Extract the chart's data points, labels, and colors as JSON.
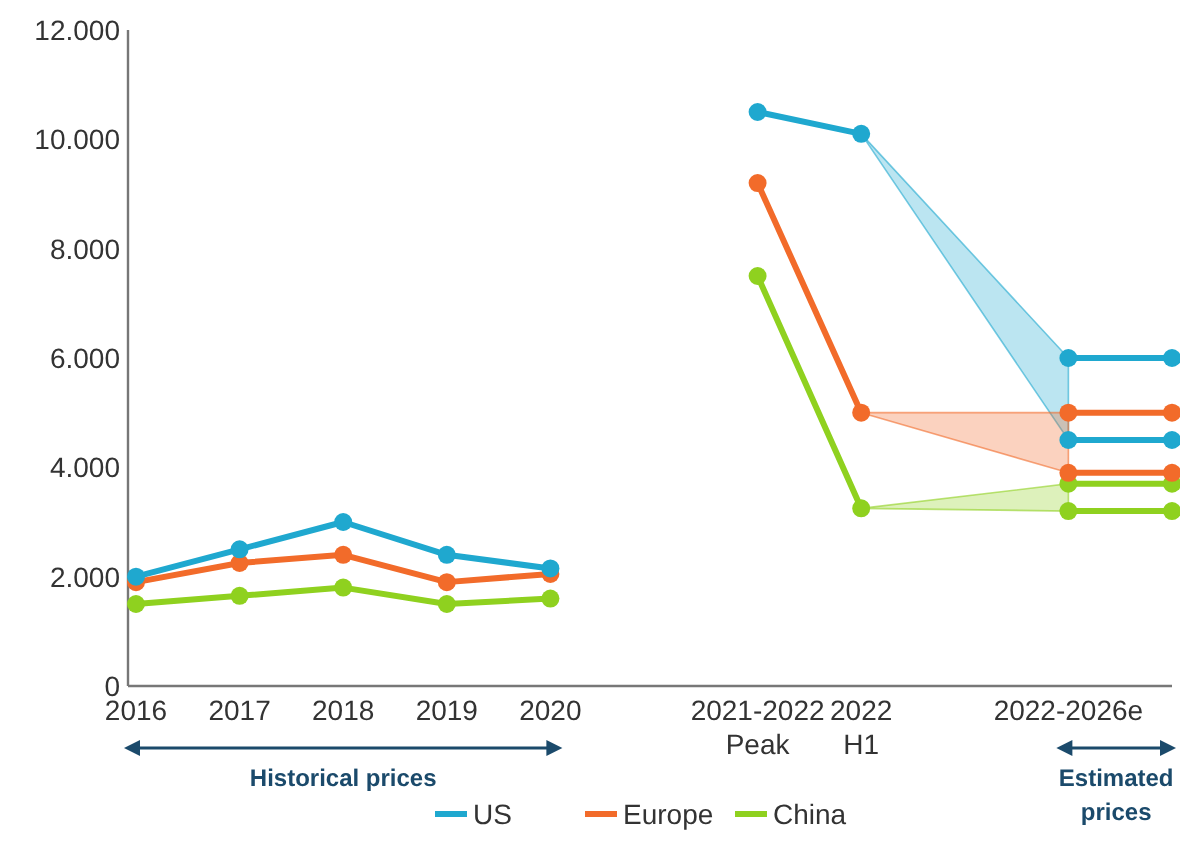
{
  "chart_data": {
    "type": "line",
    "categories": [
      "2016",
      "2017",
      "2018",
      "2019",
      "2020",
      null,
      "2021-2022 Peak",
      "2022 H1",
      null,
      "2022-2026e",
      null
    ],
    "series": [
      {
        "name": "US",
        "color": "#1fa8cf",
        "values": [
          2000,
          2500,
          3000,
          2400,
          2150,
          null,
          10500,
          10100,
          null,
          null,
          null
        ],
        "lower": [
          null,
          null,
          null,
          null,
          null,
          null,
          null,
          10100,
          null,
          4500,
          null
        ],
        "upper": [
          null,
          null,
          null,
          null,
          null,
          null,
          null,
          10100,
          null,
          6000,
          null
        ]
      },
      {
        "name": "Europe",
        "color": "#f26b2a",
        "values": [
          1900,
          2250,
          2400,
          1900,
          2050,
          null,
          9200,
          5000,
          null,
          null,
          null
        ],
        "lower": [
          null,
          null,
          null,
          null,
          null,
          null,
          null,
          5000,
          null,
          3900,
          null
        ],
        "upper": [
          null,
          null,
          null,
          null,
          null,
          null,
          null,
          5000,
          null,
          5000,
          null
        ]
      },
      {
        "name": "China",
        "color": "#8fd11f",
        "values": [
          1500,
          1650,
          1800,
          1500,
          1600,
          null,
          7500,
          3250,
          null,
          null,
          null
        ],
        "lower": [
          null,
          null,
          null,
          null,
          null,
          null,
          null,
          3250,
          null,
          3200,
          null
        ],
        "upper": [
          null,
          null,
          null,
          null,
          null,
          null,
          null,
          3250,
          null,
          3700,
          null
        ]
      },
      {
        "color": "#1fa8cf",
        "values": [
          null,
          null,
          null,
          null,
          null,
          null,
          null,
          null,
          null,
          6000,
          6000
        ]
      },
      {
        "color": "#1fa8cf",
        "values": [
          null,
          null,
          null,
          null,
          null,
          null,
          null,
          null,
          null,
          4500,
          4500
        ]
      },
      {
        "color": "#f26b2a",
        "values": [
          null,
          null,
          null,
          null,
          null,
          null,
          null,
          null,
          null,
          5000,
          5000
        ]
      },
      {
        "color": "#f26b2a",
        "values": [
          null,
          null,
          null,
          null,
          null,
          null,
          null,
          null,
          null,
          3900,
          3900
        ]
      },
      {
        "color": "#8fd11f",
        "values": [
          null,
          null,
          null,
          null,
          null,
          null,
          null,
          null,
          null,
          3700,
          3700
        ]
      },
      {
        "color": "#8fd11f",
        "values": [
          null,
          null,
          null,
          null,
          null,
          null,
          null,
          null,
          null,
          3200,
          3200
        ]
      }
    ],
    "ylim": [
      0,
      12000
    ],
    "yticks": [
      0,
      {
        "value": 2000,
        "label": "2.000"
      },
      {
        "value": 4000,
        "label": "4.000"
      },
      {
        "value": 6000,
        "label": "6.000"
      },
      {
        "value": 8000,
        "label": "8.000"
      },
      {
        "value": 10000,
        "label": "10.000"
      },
      {
        "value": 12000,
        "label": "12.000"
      }
    ],
    "annotations": [
      "Historical prices",
      "Estimated prices"
    ],
    "grid": false,
    "legend": "bottom",
    "marker": "circle",
    "line_style": "solid"
  }
}
